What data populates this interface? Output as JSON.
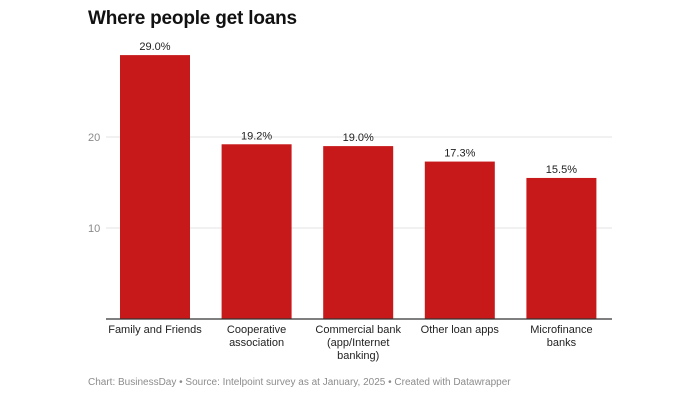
{
  "title": "Where people get loans",
  "footer": {
    "text": "Chart: BusinessDay • Source: Intelpoint survey as at January, 2025 • Created with Datawrapper"
  },
  "chart_data": {
    "type": "bar",
    "title": "Where people get loans",
    "categories": [
      [
        "Family and Friends"
      ],
      [
        "Cooperative",
        "association"
      ],
      [
        "Commercial bank",
        "(app/Internet",
        "banking)"
      ],
      [
        "Other loan apps"
      ],
      [
        "Microfinance",
        "banks"
      ]
    ],
    "values": [
      29.0,
      19.2,
      19.0,
      17.3,
      15.5
    ],
    "value_labels": [
      "29.0%",
      "19.2%",
      "19.0%",
      "17.3%",
      "15.5%"
    ],
    "yticks": [
      10,
      20
    ],
    "ylim": [
      0,
      30
    ],
    "grid": true,
    "bar_color": "#c8191a",
    "gridline_color": "#e3e3e3",
    "axis_color": "#333333"
  }
}
